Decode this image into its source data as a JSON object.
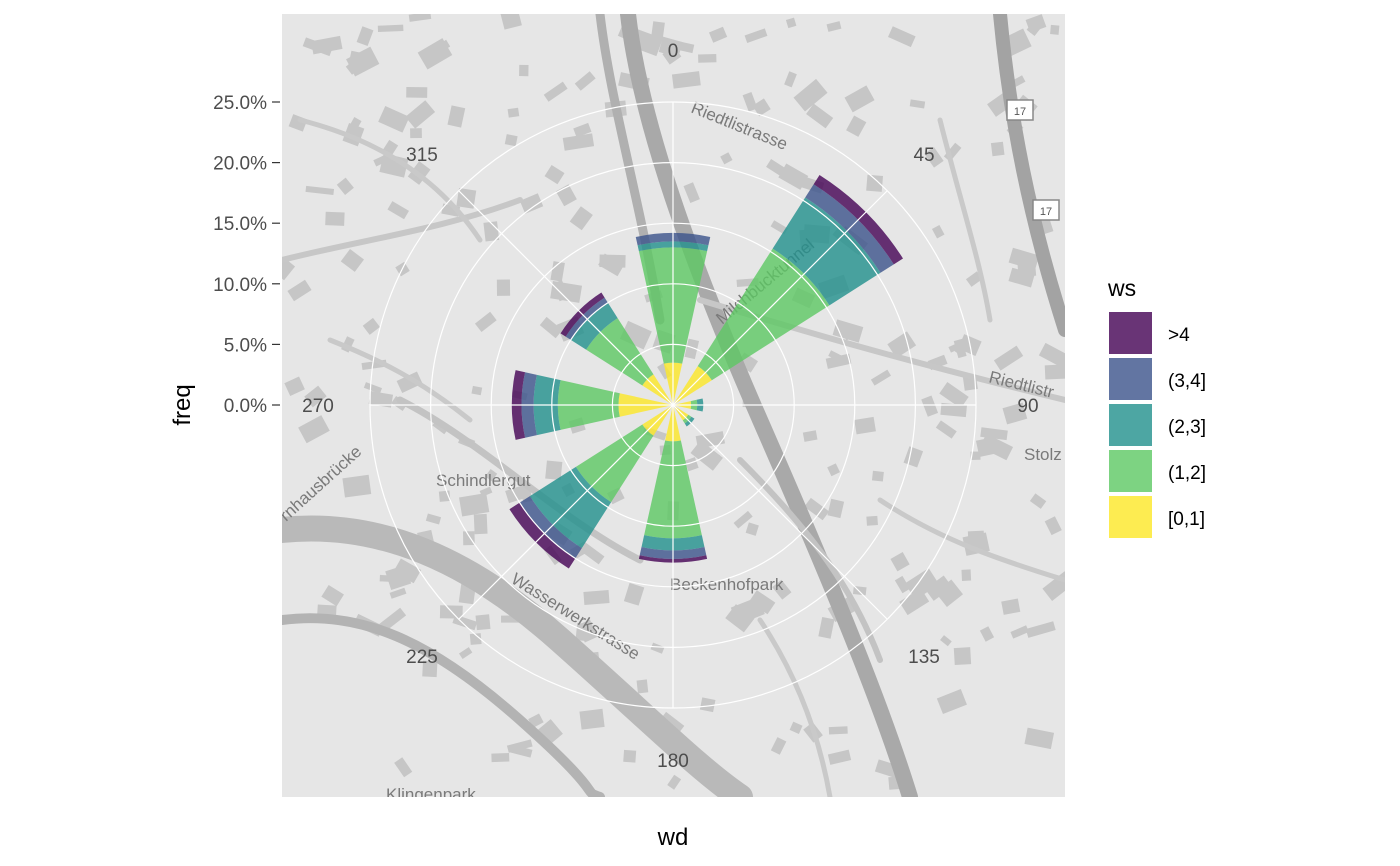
{
  "chart_data": {
    "type": "polar-bar",
    "xlabel": "wd",
    "ylabel": "freq",
    "angle_ticks": [
      "0",
      "45",
      "90",
      "135",
      "180",
      "225",
      "270",
      "315"
    ],
    "radial_ticks": [
      "0.0%",
      "5.0%",
      "10.0%",
      "15.0%",
      "20.0%",
      "25.0%"
    ],
    "radial_max": 25,
    "sector_width_deg": 30,
    "stacked": true,
    "direction": "clockwise",
    "zero_at": "top",
    "legend": {
      "title": "ws",
      "placement": "right",
      "entries": [
        ">4",
        "(3,4]",
        "(2,3]",
        "(1,2]",
        "[0,1]"
      ]
    },
    "colors": {
      ">4": "#440154",
      "(3,4]": "#3b528b",
      "(2,3]": "#21908c",
      "(1,2]": "#5dc863",
      "[0,1]": "#fde725"
    },
    "categories": [
      0,
      45,
      90,
      135,
      180,
      225,
      270,
      315
    ],
    "series": [
      {
        "name": "[0,1]",
        "values": [
          3.5,
          3.8,
          1.5,
          1.5,
          3.0,
          3.0,
          4.5,
          3.0
        ]
      },
      {
        "name": "(1,2]",
        "values": [
          9.5,
          11.5,
          0.5,
          0.3,
          8.0,
          6.5,
          5.0,
          5.5
        ]
      },
      {
        "name": "(2,3]",
        "values": [
          0.5,
          5.0,
          0.5,
          0.3,
          1.0,
          4.5,
          2.0,
          1.5
        ]
      },
      {
        "name": "(3,4]",
        "values": [
          0.7,
          1.3,
          0.0,
          0.0,
          0.7,
          1.0,
          1.0,
          0.5
        ]
      },
      {
        "name": ">4",
        "values": [
          0.0,
          0.9,
          0.0,
          0.0,
          0.3,
          1.0,
          0.8,
          0.5
        ]
      }
    ],
    "map_labels": [
      "Riedtlistrasse",
      "Milchbucktunnel",
      "Schindlergut",
      "Wasserwerkstrasse",
      "Beckenhofpark",
      "Riedtlistr",
      "Stolz",
      "Klingenpark",
      "rnhausbrücke",
      "17",
      "17"
    ],
    "grid": true
  }
}
